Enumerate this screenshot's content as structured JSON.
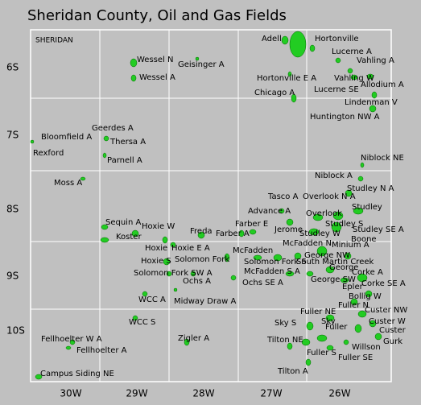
{
  "title": "Sheridan County, Oil and Gas Fields",
  "county_label": "SHERIDAN",
  "townships": [
    "6S",
    "7S",
    "8S",
    "9S",
    "10S"
  ],
  "ranges": [
    "30W",
    "29W",
    "28W",
    "27W",
    "26W"
  ],
  "fields": [
    "Adell",
    "Hortonville",
    "Lucerne A",
    "Vahling A",
    "Wessel N",
    "Geisinger A",
    "Hortonville E A",
    "Vahling W",
    "Wessel A",
    "Lucerne SE",
    "Allodium A",
    "Chicago A",
    "Lindenman V",
    "Huntington NW A",
    "Geerdes A",
    "Bloomfield A",
    "Thersa A",
    "Rexford",
    "Parnell A",
    "Niblock NE",
    "Niblock A",
    "Moss A",
    "Studley N A",
    "Tasco A",
    "Overlook N A",
    "Studley",
    "Advance A",
    "Overlook",
    "Sequin A",
    "Hoxie W",
    "Farber E",
    "Studley S",
    "Jerome",
    "Studley SE A",
    "Freda",
    "Farber A",
    "Studley W",
    "Koster",
    "Boone",
    "McFadden N",
    "Minium A",
    "Hoxie E A",
    "Hoxie",
    "McFadden",
    "George NW",
    "Solomon Fork",
    "Hoxie S",
    "Solomon Fork S",
    "South Martin Creek",
    "George",
    "Corke A",
    "McFadden S A",
    "Solomon Fork SW A",
    "Ochs A",
    "Ochs SE A",
    "George SW",
    "Corke SE A",
    "Epler",
    "Bollig W",
    "Fuller N",
    "WCC A",
    "Midway Draw A",
    "Custer NW",
    "Fuller NE",
    "Custer W",
    "WCC S",
    "Sky",
    "Sky S",
    "Fuller",
    "Custer",
    "Fellhoelter W A",
    "Zigler A",
    "Tilton NE",
    "Gurk",
    "Fellhoelter A",
    "Willson",
    "Fuller S",
    "Fuller SE",
    "Tilton A",
    "Campus Siding NE"
  ]
}
